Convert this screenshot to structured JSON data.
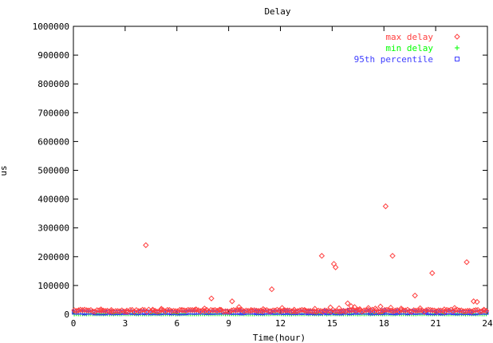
{
  "chart_data": {
    "type": "scatter",
    "title": "Delay",
    "xlabel": "Time(hour)",
    "ylabel": "us",
    "xlim": [
      0,
      24
    ],
    "ylim": [
      0,
      1000000
    ],
    "x_ticks": [
      "0",
      "3",
      "6",
      "9",
      "12",
      "15",
      "18",
      "21",
      "24"
    ],
    "y_ticks": [
      "0",
      "100000",
      "200000",
      "300000",
      "400000",
      "500000",
      "600000",
      "700000",
      "800000",
      "900000",
      "1000000"
    ],
    "grid": false,
    "legend_position": "top-right",
    "series": [
      {
        "name": "max delay",
        "marker": "diamond",
        "color": "#ff4040",
        "baseline": 12000,
        "points": [
          [
            0.3,
            14000
          ],
          [
            1.6,
            17000
          ],
          [
            2.2,
            15000
          ],
          [
            3.1,
            13000
          ],
          [
            4.2,
            240000
          ],
          [
            4.6,
            16000
          ],
          [
            5.1,
            19000
          ],
          [
            6.3,
            14000
          ],
          [
            7.1,
            17000
          ],
          [
            7.6,
            20000
          ],
          [
            8.0,
            55000
          ],
          [
            8.5,
            16000
          ],
          [
            9.2,
            45000
          ],
          [
            9.6,
            25000
          ],
          [
            10.3,
            15000
          ],
          [
            11.0,
            18000
          ],
          [
            11.5,
            87000
          ],
          [
            12.1,
            22000
          ],
          [
            12.8,
            16000
          ],
          [
            13.4,
            15000
          ],
          [
            14.0,
            19000
          ],
          [
            14.4,
            203000
          ],
          [
            14.9,
            24000
          ],
          [
            15.1,
            175000
          ],
          [
            15.2,
            163000
          ],
          [
            15.4,
            21000
          ],
          [
            15.9,
            38000
          ],
          [
            16.1,
            28000
          ],
          [
            16.3,
            25000
          ],
          [
            16.6,
            18000
          ],
          [
            17.1,
            22000
          ],
          [
            17.5,
            20000
          ],
          [
            17.8,
            27000
          ],
          [
            18.1,
            375000
          ],
          [
            18.4,
            23000
          ],
          [
            18.5,
            203000
          ],
          [
            19.0,
            20000
          ],
          [
            19.8,
            65000
          ],
          [
            20.1,
            21000
          ],
          [
            20.8,
            143000
          ],
          [
            21.5,
            17000
          ],
          [
            22.1,
            22000
          ],
          [
            22.8,
            181000
          ],
          [
            23.2,
            45000
          ],
          [
            23.4,
            43000
          ],
          [
            23.8,
            16000
          ]
        ]
      },
      {
        "name": "min delay",
        "marker": "plus",
        "color": "#00ff00",
        "baseline": 1500,
        "points": []
      },
      {
        "name": "95th percentile",
        "marker": "square",
        "color": "#4040ff",
        "baseline": 6000,
        "points": [
          [
            9.8,
            9000
          ],
          [
            10.6,
            10000
          ],
          [
            11.4,
            9500
          ],
          [
            12.4,
            10500
          ],
          [
            13.6,
            9500
          ],
          [
            14.6,
            10000
          ],
          [
            15.6,
            11000
          ],
          [
            16.0,
            14000
          ],
          [
            16.4,
            12000
          ],
          [
            17.2,
            11000
          ],
          [
            18.0,
            12500
          ],
          [
            18.8,
            10500
          ],
          [
            19.6,
            10000
          ],
          [
            20.4,
            9500
          ],
          [
            21.2,
            9000
          ],
          [
            22.0,
            8500
          ],
          [
            23.0,
            8000
          ]
        ]
      }
    ]
  }
}
